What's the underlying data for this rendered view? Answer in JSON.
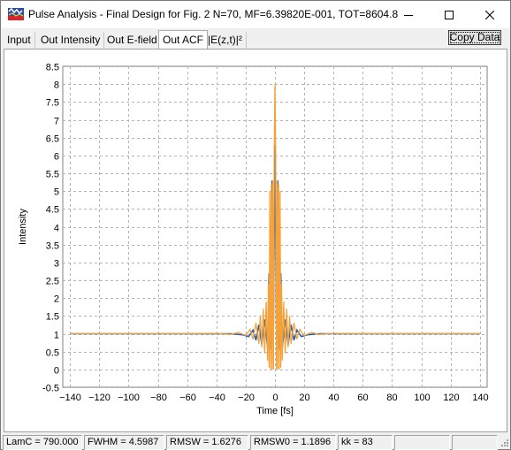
{
  "window": {
    "title": "Pulse Analysis - Final Design for Fig. 2  N=70, MF=6.39820E-001, TOT=8604.8"
  },
  "tabs": [
    {
      "label": "Input"
    },
    {
      "label": "Out Intensity"
    },
    {
      "label": "Out E-field"
    },
    {
      "label": "Out ACF"
    },
    {
      "label": "|E(z,t)|²"
    }
  ],
  "active_tab": "Out ACF",
  "copy_button": {
    "label": "Copy Data"
  },
  "status": [
    {
      "text": "LamC = 790.000"
    },
    {
      "text": "FWHM = 4.5987"
    },
    {
      "text": "RMSW = 1.6276"
    },
    {
      "text": "RMSW0 = 1.1896"
    },
    {
      "text": "kk = 83"
    },
    {
      "text": ""
    },
    {
      "text": ""
    }
  ],
  "colors": {
    "orange": "#f5a23a",
    "blue": "#1f5fb4",
    "grid": "#b4b4b4"
  },
  "chart_data": {
    "type": "line",
    "title": "",
    "xlabel": "Time [fs]",
    "ylabel": "Intensity",
    "xlim": [
      -145,
      145
    ],
    "ylim": [
      -0.5,
      8.5
    ],
    "xticks": [
      -140,
      -120,
      -100,
      -80,
      -60,
      -40,
      -20,
      0,
      20,
      40,
      60,
      80,
      100,
      120,
      140
    ],
    "yticks": [
      -0.5,
      0,
      0.5,
      1,
      1.5,
      2,
      2.5,
      3,
      3.5,
      4,
      4.5,
      5,
      5.5,
      6,
      6.5,
      7,
      7.5,
      8,
      8.5
    ],
    "ytick_labels": [
      "-0.5",
      "0",
      "0.5",
      "1",
      "1.5",
      "2",
      "2.5",
      "3",
      "3.5",
      "4",
      "4.5",
      "5",
      "5.5",
      "6",
      "6.5",
      "7",
      "7.5",
      "8",
      "8.5"
    ],
    "grid": true,
    "series": [
      {
        "color": "#1f5fb4",
        "x": [
          -140,
          -60,
          -30,
          -22,
          -18,
          -15,
          -13,
          -11,
          -9,
          -7,
          -5,
          -4,
          -3,
          -2,
          -1,
          0,
          1,
          2,
          3,
          4,
          5,
          7,
          9,
          11,
          13,
          15,
          18,
          22,
          30,
          60,
          140
        ],
        "y": [
          1,
          1,
          1,
          0.97,
          0.92,
          1.1,
          0.82,
          1.25,
          0.7,
          1.4,
          0.6,
          2.7,
          0.55,
          5.3,
          1.2,
          6.3,
          1.2,
          5.3,
          0.55,
          2.7,
          0.6,
          1.4,
          0.7,
          1.25,
          0.82,
          1.1,
          0.92,
          0.97,
          1,
          1,
          1
        ]
      },
      {
        "color": "#f5a23a",
        "x": [
          -140,
          -60,
          -40,
          -30,
          -25,
          -20,
          -17,
          -15,
          -13,
          -11,
          -10,
          -9,
          -8,
          -7,
          -6,
          -5,
          -4.5,
          -4,
          -3.5,
          -3,
          -2.5,
          -2,
          -1.5,
          -1,
          -0.5,
          0,
          0.5,
          1,
          1.5,
          2,
          2.5,
          3,
          3.5,
          4,
          4.5,
          5,
          6,
          7,
          8,
          9,
          10,
          11,
          13,
          15,
          17,
          20,
          25,
          30,
          40,
          60,
          140
        ],
        "y": [
          1,
          1,
          1.01,
          0.98,
          1.04,
          0.95,
          1.12,
          0.85,
          1.3,
          0.72,
          1.5,
          0.62,
          1.7,
          0.45,
          1.9,
          0.25,
          2.4,
          0.05,
          5.0,
          0.0,
          5.2,
          0.0,
          5.3,
          0.0,
          6.2,
          8.0,
          6.2,
          0.0,
          5.3,
          0.0,
          5.2,
          0.0,
          5.0,
          0.05,
          2.4,
          0.25,
          1.9,
          0.45,
          1.7,
          0.62,
          1.5,
          0.72,
          1.3,
          0.85,
          1.12,
          0.95,
          1.04,
          0.98,
          1.01,
          1,
          1
        ]
      }
    ]
  }
}
